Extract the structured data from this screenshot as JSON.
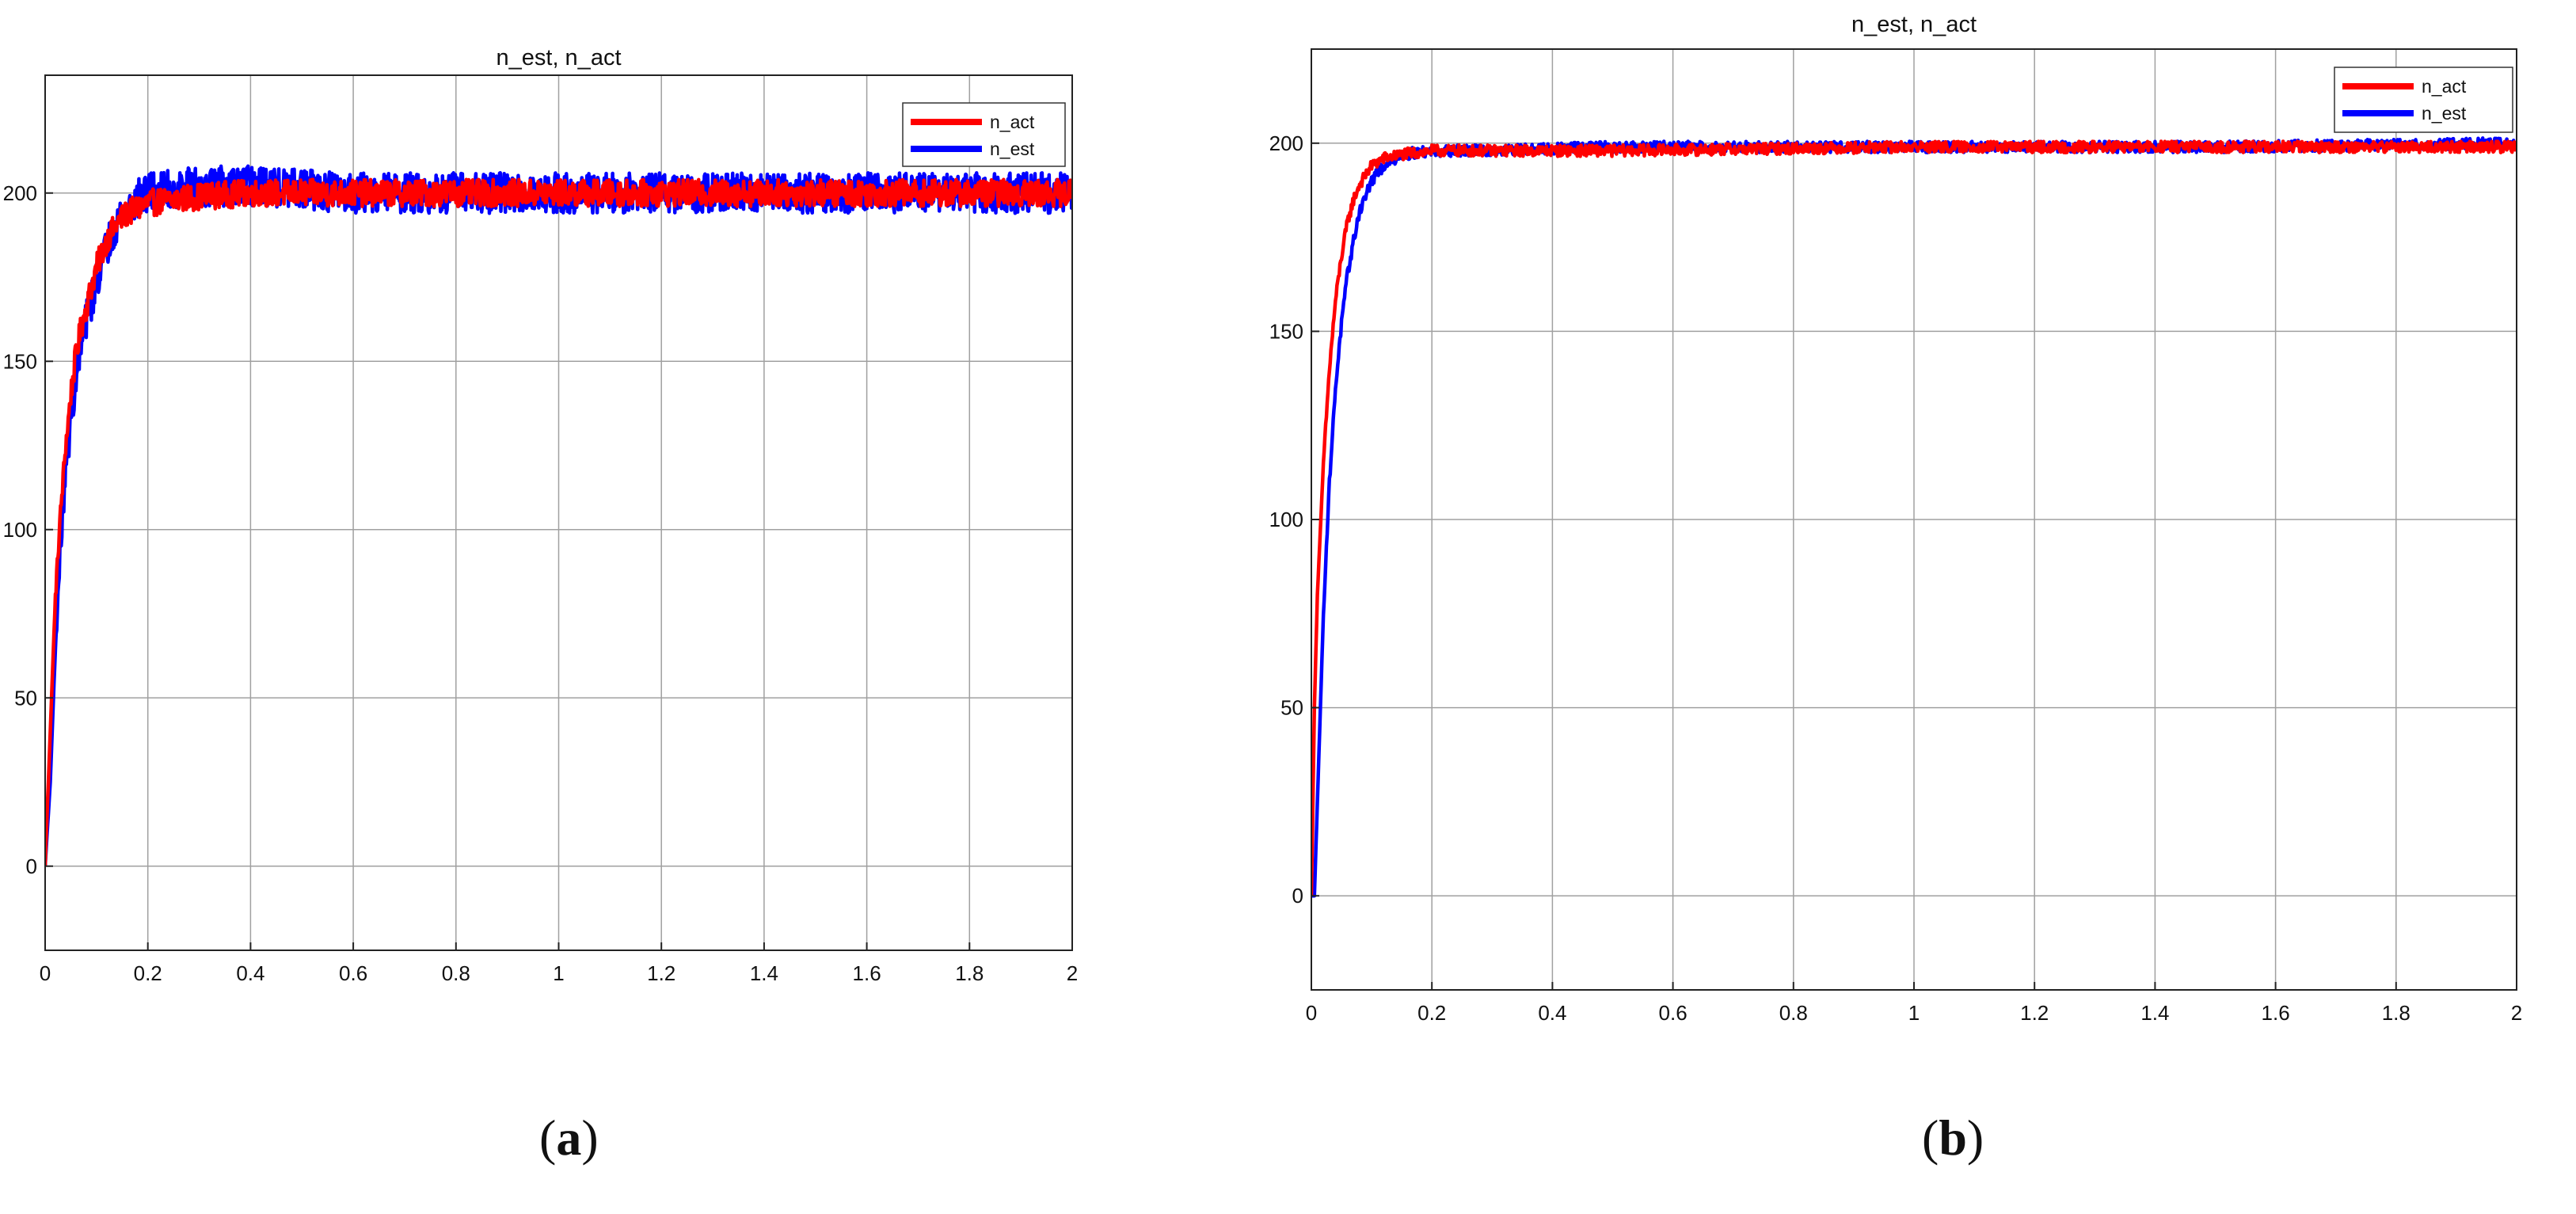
{
  "chart_data": [
    {
      "type": "line",
      "panel_label": "a",
      "title": "n_est, n_act",
      "xlabel": "",
      "ylabel": "",
      "xlim": [
        0,
        2
      ],
      "ylim": [
        -25,
        235
      ],
      "x_ticks": [
        0,
        0.2,
        0.4,
        0.6,
        0.8,
        1,
        1.2,
        1.4,
        1.6,
        1.8,
        2
      ],
      "y_ticks": [
        0,
        50,
        100,
        150,
        200
      ],
      "grid": true,
      "legend_position": "top-right",
      "series": [
        {
          "name": "n_act",
          "color": "#ff0000",
          "x": [
            0,
            0.01,
            0.02,
            0.03,
            0.04,
            0.05,
            0.06,
            0.07,
            0.08,
            0.09,
            0.1,
            0.12,
            0.14,
            0.16,
            0.2,
            0.25,
            0.3,
            0.4,
            0.5,
            0.6,
            0.8,
            1.0,
            1.2,
            1.4,
            1.6,
            1.8,
            2.0
          ],
          "values": [
            0,
            40,
            80,
            105,
            125,
            140,
            152,
            160,
            166,
            172,
            178,
            186,
            191,
            194,
            197,
            198,
            199,
            200,
            200,
            200,
            200,
            200,
            200,
            200,
            200,
            200,
            200
          ],
          "noise_amplitude": 4
        },
        {
          "name": "n_est",
          "color": "#0000ff",
          "x": [
            0,
            0.01,
            0.02,
            0.03,
            0.04,
            0.05,
            0.06,
            0.07,
            0.08,
            0.09,
            0.1,
            0.12,
            0.14,
            0.16,
            0.2,
            0.25,
            0.3,
            0.4,
            0.5,
            0.6,
            0.8,
            1.0,
            1.2,
            1.4,
            1.6,
            1.8,
            2.0
          ],
          "values": [
            0,
            25,
            65,
            95,
            118,
            132,
            146,
            154,
            162,
            168,
            174,
            184,
            192,
            196,
            200,
            201,
            202,
            202,
            201,
            200,
            200,
            200,
            200,
            200,
            200,
            200,
            200
          ],
          "noise_amplitude": 6
        }
      ]
    },
    {
      "type": "line",
      "panel_label": "b",
      "title": "n_est, n_act",
      "xlabel": "",
      "ylabel": "",
      "xlim": [
        0,
        2
      ],
      "ylim": [
        -25,
        225
      ],
      "x_ticks": [
        0,
        0.2,
        0.4,
        0.6,
        0.8,
        1,
        1.2,
        1.4,
        1.6,
        1.8,
        2
      ],
      "y_ticks": [
        0,
        50,
        100,
        150,
        200
      ],
      "grid": true,
      "legend_position": "top-right",
      "series": [
        {
          "name": "n_act",
          "color": "#ff0000",
          "x": [
            0,
            0.005,
            0.01,
            0.02,
            0.03,
            0.04,
            0.05,
            0.06,
            0.07,
            0.08,
            0.1,
            0.12,
            0.15,
            0.2,
            0.3,
            0.5,
            1.0,
            1.5,
            2.0
          ],
          "values": [
            0,
            50,
            80,
            115,
            140,
            158,
            170,
            179,
            185,
            189,
            194,
            196,
            197,
            198,
            198,
            198,
            199,
            199,
            199
          ],
          "noise_amplitude": 1.5
        },
        {
          "name": "n_est",
          "color": "#0000ff",
          "x": [
            0,
            0.005,
            0.01,
            0.02,
            0.03,
            0.04,
            0.05,
            0.06,
            0.07,
            0.08,
            0.1,
            0.12,
            0.15,
            0.2,
            0.3,
            0.5,
            1.0,
            1.5,
            2.0
          ],
          "values": [
            0,
            0,
            25,
            75,
            110,
            135,
            152,
            165,
            174,
            182,
            190,
            194,
            197,
            198,
            198,
            199,
            199,
            199,
            200
          ],
          "noise_amplitude": 1.5
        }
      ]
    }
  ]
}
